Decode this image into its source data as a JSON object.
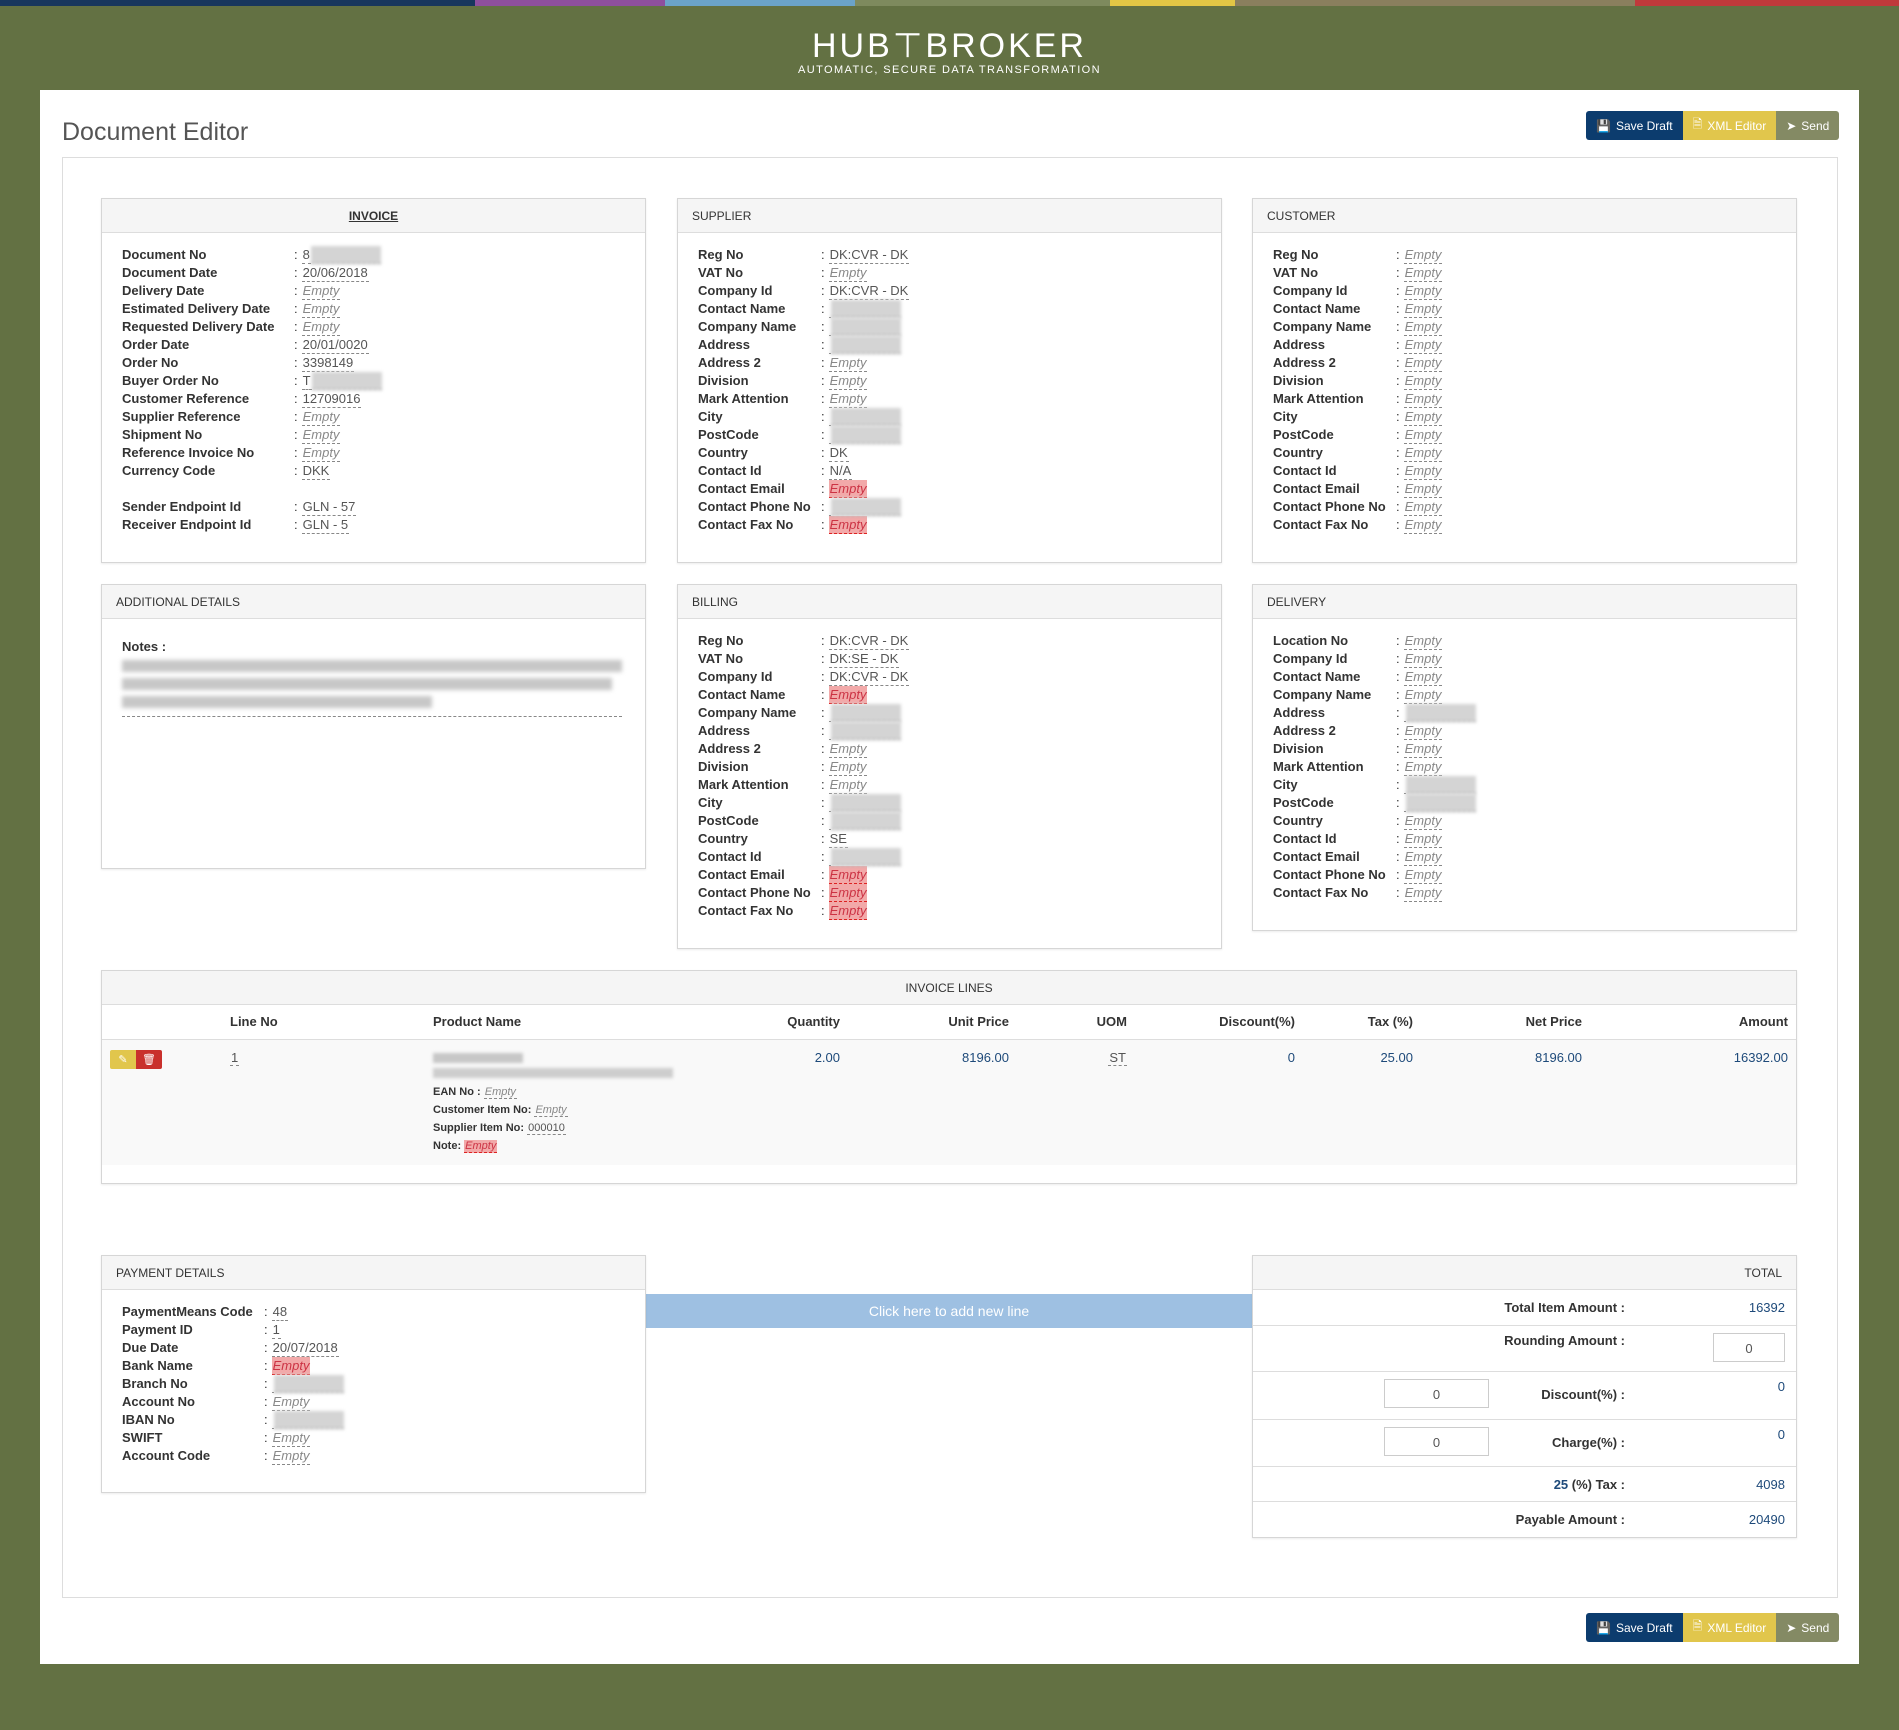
{
  "brand": {
    "name": "HUB⊤BROKER",
    "tagline": "AUTOMATIC, SECURE DATA TRANSFORMATION"
  },
  "colorbar": [
    "#17365d",
    "#1f4e79",
    "#8e4f9e",
    "#6ba3c9",
    "#7e8a5e",
    "#e2c645",
    "#7a7f5e",
    "#b07c4e",
    "#c0393b"
  ],
  "page_title": "Document Editor",
  "actions": {
    "save_draft": "Save Draft",
    "xml_editor": "XML Editor",
    "send": "Send"
  },
  "invoice": {
    "title": "INVOICE",
    "fields": [
      {
        "label": "Document No",
        "value": "8",
        "state": "blur"
      },
      {
        "label": "Document Date",
        "value": "20/06/2018",
        "state": "ok"
      },
      {
        "label": "Delivery Date",
        "value": "Empty",
        "state": "empty"
      },
      {
        "label": "Estimated Delivery Date",
        "value": "Empty",
        "state": "empty"
      },
      {
        "label": "Requested Delivery Date",
        "value": "Empty",
        "state": "empty"
      },
      {
        "label": "Order Date",
        "value": "20/01/0020",
        "state": "ok"
      },
      {
        "label": "Order No",
        "value": "3398149",
        "state": "ok"
      },
      {
        "label": "Buyer Order No",
        "value": "T",
        "state": "blur"
      },
      {
        "label": "Customer Reference",
        "value": "12709016",
        "state": "ok"
      },
      {
        "label": "Supplier Reference",
        "value": "Empty",
        "state": "empty"
      },
      {
        "label": "Shipment No",
        "value": "Empty",
        "state": "empty"
      },
      {
        "label": "Reference Invoice No",
        "value": "Empty",
        "state": "empty"
      },
      {
        "label": "Currency Code",
        "value": "DKK",
        "state": "ok"
      }
    ],
    "endpoints": [
      {
        "label": "Sender Endpoint Id",
        "value": "GLN - 57",
        "state": "ok"
      },
      {
        "label": "Receiver Endpoint Id",
        "value": "GLN - 5",
        "state": "ok"
      }
    ]
  },
  "supplier": {
    "title": "SUPPLIER",
    "fields": [
      {
        "label": "Reg No",
        "value": "DK:CVR - DK",
        "state": "ok"
      },
      {
        "label": "VAT No",
        "value": "Empty",
        "state": "empty"
      },
      {
        "label": "Company Id",
        "value": "DK:CVR - DK",
        "state": "ok"
      },
      {
        "label": "Contact Name",
        "value": "",
        "state": "blur"
      },
      {
        "label": "Company Name",
        "value": "",
        "state": "blur"
      },
      {
        "label": "Address",
        "value": "",
        "state": "blur"
      },
      {
        "label": "Address 2",
        "value": "Empty",
        "state": "empty"
      },
      {
        "label": "Division",
        "value": "Empty",
        "state": "empty"
      },
      {
        "label": "Mark Attention",
        "value": "Empty",
        "state": "empty"
      },
      {
        "label": "City",
        "value": "",
        "state": "blur"
      },
      {
        "label": "PostCode",
        "value": "",
        "state": "blur"
      },
      {
        "label": "Country",
        "value": "DK",
        "state": "ok"
      },
      {
        "label": "Contact Id",
        "value": "N/A",
        "state": "ok"
      },
      {
        "label": "Contact Email",
        "value": "Empty",
        "state": "err"
      },
      {
        "label": "Contact Phone No",
        "value": "",
        "state": "blur"
      },
      {
        "label": "Contact Fax No",
        "value": "Empty",
        "state": "err"
      }
    ]
  },
  "customer": {
    "title": "CUSTOMER",
    "fields": [
      {
        "label": "Reg No",
        "value": "Empty",
        "state": "empty"
      },
      {
        "label": "VAT No",
        "value": "Empty",
        "state": "empty"
      },
      {
        "label": "Company Id",
        "value": "Empty",
        "state": "empty"
      },
      {
        "label": "Contact Name",
        "value": "Empty",
        "state": "empty"
      },
      {
        "label": "Company Name",
        "value": "Empty",
        "state": "empty"
      },
      {
        "label": "Address",
        "value": "Empty",
        "state": "empty"
      },
      {
        "label": "Address 2",
        "value": "Empty",
        "state": "empty"
      },
      {
        "label": "Division",
        "value": "Empty",
        "state": "empty"
      },
      {
        "label": "Mark Attention",
        "value": "Empty",
        "state": "empty"
      },
      {
        "label": "City",
        "value": "Empty",
        "state": "empty"
      },
      {
        "label": "PostCode",
        "value": "Empty",
        "state": "empty"
      },
      {
        "label": "Country",
        "value": "Empty",
        "state": "empty"
      },
      {
        "label": "Contact Id",
        "value": "Empty",
        "state": "empty"
      },
      {
        "label": "Contact Email",
        "value": "Empty",
        "state": "empty"
      },
      {
        "label": "Contact Phone No",
        "value": "Empty",
        "state": "empty"
      },
      {
        "label": "Contact Fax No",
        "value": "Empty",
        "state": "empty"
      }
    ]
  },
  "additional": {
    "title": "ADDITIONAL DETAILS",
    "notes_label": "Notes :"
  },
  "billing": {
    "title": "BILLING",
    "fields": [
      {
        "label": "Reg No",
        "value": "DK:CVR - DK",
        "state": "ok"
      },
      {
        "label": "VAT No",
        "value": "DK:SE - DK",
        "state": "ok"
      },
      {
        "label": "Company Id",
        "value": "DK:CVR - DK",
        "state": "ok"
      },
      {
        "label": "Contact Name",
        "value": "Empty",
        "state": "err"
      },
      {
        "label": "Company Name",
        "value": "",
        "state": "blur"
      },
      {
        "label": "Address",
        "value": "",
        "state": "blur"
      },
      {
        "label": "Address 2",
        "value": "Empty",
        "state": "empty"
      },
      {
        "label": "Division",
        "value": "Empty",
        "state": "empty"
      },
      {
        "label": "Mark Attention",
        "value": "Empty",
        "state": "empty"
      },
      {
        "label": "City",
        "value": "",
        "state": "blur"
      },
      {
        "label": "PostCode",
        "value": "",
        "state": "blur"
      },
      {
        "label": "Country",
        "value": "SE",
        "state": "ok"
      },
      {
        "label": "Contact Id",
        "value": "",
        "state": "blur"
      },
      {
        "label": "Contact Email",
        "value": "Empty",
        "state": "err"
      },
      {
        "label": "Contact Phone No",
        "value": "Empty",
        "state": "err"
      },
      {
        "label": "Contact Fax No",
        "value": "Empty",
        "state": "err"
      }
    ]
  },
  "delivery": {
    "title": "DELIVERY",
    "fields": [
      {
        "label": "Location No",
        "value": "Empty",
        "state": "empty"
      },
      {
        "label": "Company Id",
        "value": "Empty",
        "state": "empty"
      },
      {
        "label": "Contact Name",
        "value": "Empty",
        "state": "empty"
      },
      {
        "label": "Company Name",
        "value": "Empty",
        "state": "empty"
      },
      {
        "label": "Address",
        "value": "",
        "state": "blur"
      },
      {
        "label": "Address 2",
        "value": "Empty",
        "state": "empty"
      },
      {
        "label": "Division",
        "value": "Empty",
        "state": "empty"
      },
      {
        "label": "Mark Attention",
        "value": "Empty",
        "state": "empty"
      },
      {
        "label": "City",
        "value": "",
        "state": "blur"
      },
      {
        "label": "PostCode",
        "value": "",
        "state": "blur"
      },
      {
        "label": "Country",
        "value": "Empty",
        "state": "empty"
      },
      {
        "label": "Contact Id",
        "value": "Empty",
        "state": "empty"
      },
      {
        "label": "Contact Email",
        "value": "Empty",
        "state": "empty"
      },
      {
        "label": "Contact Phone No",
        "value": "Empty",
        "state": "empty"
      },
      {
        "label": "Contact Fax No",
        "value": "Empty",
        "state": "empty"
      }
    ]
  },
  "invoice_lines": {
    "title": "INVOICE LINES",
    "columns": [
      "Line No",
      "Product Name",
      "Quantity",
      "Unit Price",
      "UOM",
      "Discount(%)",
      "Tax (%)",
      "Net Price",
      "Amount"
    ],
    "rows": [
      {
        "line_no": "1",
        "quantity": "2.00",
        "unit_price": "8196.00",
        "uom": "ST",
        "discount": "0",
        "tax": "25.00",
        "net_price": "8196.00",
        "amount": "16392.00",
        "ean_label": "EAN No :",
        "ean": "Empty",
        "cust_item_label": "Customer Item No:",
        "cust_item": "Empty",
        "supp_item_label": "Supplier Item No:",
        "supp_item": "000010",
        "note_label": "Note:",
        "note": "Empty"
      }
    ],
    "add_line": "Click here to add new line"
  },
  "payment": {
    "title": "PAYMENT DETAILS",
    "fields": [
      {
        "label": "PaymentMeans Code",
        "value": "48",
        "state": "ok"
      },
      {
        "label": "Payment ID",
        "value": "1",
        "state": "ok"
      },
      {
        "label": "Due Date",
        "value": "20/07/2018",
        "state": "ok"
      },
      {
        "label": "Bank Name",
        "value": "Empty",
        "state": "err"
      },
      {
        "label": "Branch No",
        "value": "",
        "state": "blur"
      },
      {
        "label": "Account No",
        "value": "Empty",
        "state": "empty"
      },
      {
        "label": "IBAN No",
        "value": "",
        "state": "blur"
      },
      {
        "label": "SWIFT",
        "value": "Empty",
        "state": "empty"
      },
      {
        "label": "Account Code",
        "value": "Empty",
        "state": "empty"
      }
    ]
  },
  "total": {
    "title": "TOTAL",
    "total_item_label": "Total Item Amount :",
    "total_item": "16392",
    "rounding_label": "Rounding Amount :",
    "rounding": "0",
    "discount_input": "0",
    "discount_label": "Discount(%) :",
    "discount": "0",
    "charge_input": "0",
    "charge_label": "Charge(%) :",
    "charge": "0",
    "tax_pct": "25",
    "tax_label": "(%) Tax :",
    "tax": "4098",
    "payable_label": "Payable Amount :",
    "payable": "20490"
  }
}
